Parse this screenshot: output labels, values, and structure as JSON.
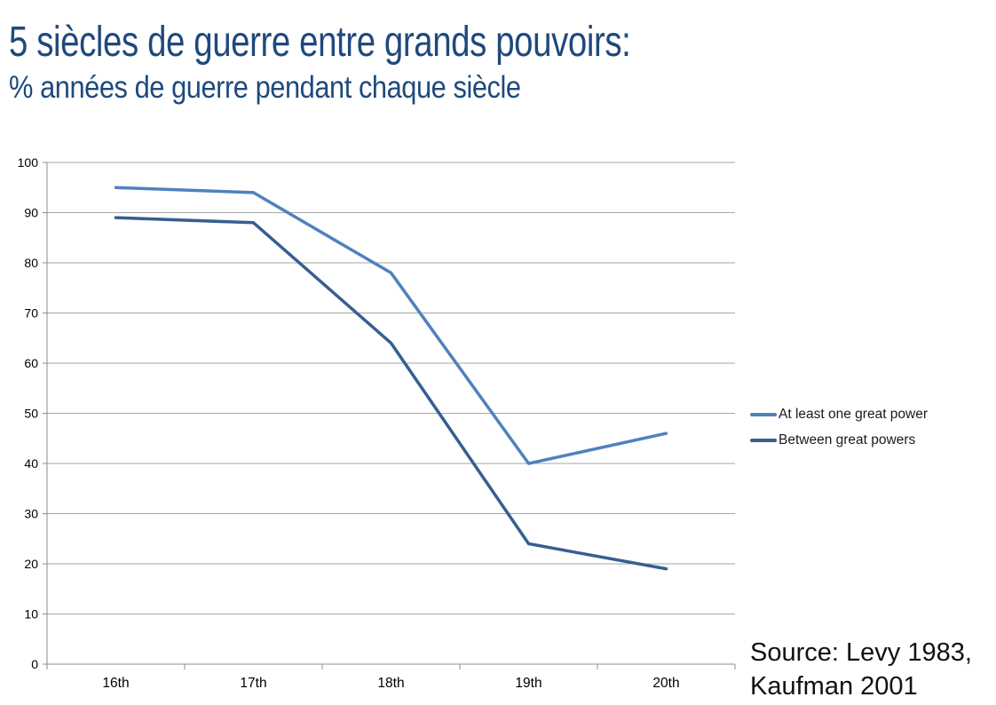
{
  "header": {
    "title": "5 siècles de guerre entre grands pouvoirs:",
    "subtitle": "% années de guerre pendant chaque siècle"
  },
  "source": {
    "line1": "Source: Levy 1983,",
    "line2": "Kaufman 2001"
  },
  "colors": {
    "title_text": "#1F497D",
    "series1": "#4F81BD",
    "series2": "#365F91",
    "gridline": "#A6A6A6",
    "axis": "#8C8C8C",
    "axis_label": "#000000",
    "legend_text": "#1a1a1a"
  },
  "chart_data": {
    "type": "line",
    "title": "5 siècles de guerre entre grands pouvoirs:",
    "subtitle": "% années de guerre pendant chaque siècle",
    "categories": [
      "16th",
      "17th",
      "18th",
      "19th",
      "20th"
    ],
    "series": [
      {
        "name": "At least one great power",
        "values": [
          95,
          94,
          78,
          40,
          46
        ],
        "color": "#4F81BD"
      },
      {
        "name": "Between great powers",
        "values": [
          89,
          88,
          64,
          24,
          19
        ],
        "color": "#365F91"
      }
    ],
    "xlabel": "",
    "ylabel": "",
    "ylim": [
      0,
      100
    ],
    "yticks": [
      0,
      10,
      20,
      30,
      40,
      50,
      60,
      70,
      80,
      90,
      100
    ],
    "grid": true,
    "legend_position": "right",
    "annotation": "Source: Levy 1983, Kaufman 2001"
  }
}
